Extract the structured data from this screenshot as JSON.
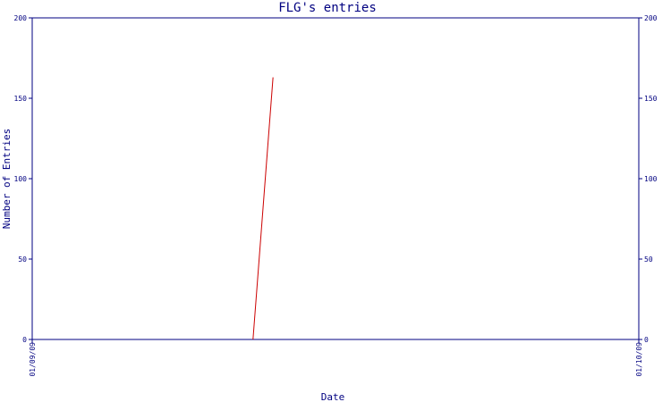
{
  "chart_data": {
    "type": "line",
    "title": "FLG's entries",
    "x_label": "Date",
    "y_label": "Number of Entries",
    "x": [
      0.364,
      0.397
    ],
    "series": [
      {
        "name": "FLG",
        "color": "#cc0000",
        "values": [
          0,
          163
        ]
      }
    ],
    "xlim": [
      0,
      1
    ],
    "xticks": [
      {
        "value": 0,
        "label": "01/09/09"
      },
      {
        "value": 1,
        "label": "01/10/09"
      }
    ],
    "ylim": [
      0,
      200
    ],
    "yticks": [
      0,
      50,
      100,
      150,
      200
    ],
    "y2lim": [
      0,
      200
    ],
    "y2ticks": [
      0,
      50,
      100,
      150,
      200
    ],
    "axis_color": "#000080"
  }
}
